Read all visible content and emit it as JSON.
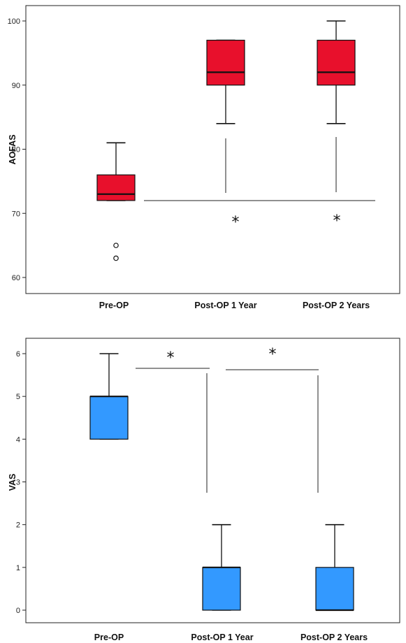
{
  "chart_data": [
    {
      "type": "boxplot",
      "ylabel": "AOFAS",
      "categories": [
        "Pre-OP",
        "Post-OP 1 Year",
        "Post-OP 2 Years"
      ],
      "ylim": [
        58,
        102
      ],
      "yticks": [
        60,
        70,
        80,
        90,
        100
      ],
      "box_color": "#e8102c",
      "boxes": [
        {
          "category": "Pre-OP",
          "whisker_low": 72,
          "q1": 72,
          "median": 73,
          "q3": 76,
          "whisker_high": 81,
          "outliers": [
            65,
            63
          ]
        },
        {
          "category": "Post-OP 1 Year",
          "whisker_low": 84,
          "q1": 90,
          "median": 92,
          "q3": 97,
          "whisker_high": 97,
          "outliers": []
        },
        {
          "category": "Post-OP 2 Years",
          "whisker_low": 84,
          "q1": 90,
          "median": 92,
          "q3": 97,
          "whisker_high": 100,
          "outliers": []
        }
      ],
      "significance": [
        {
          "marker": "*",
          "bracket": [
            "Pre-OP",
            "Post-OP 1 Year"
          ]
        },
        {
          "marker": "*",
          "bracket": [
            "Pre-OP",
            "Post-OP 2 Years"
          ]
        }
      ]
    },
    {
      "type": "boxplot",
      "ylabel": "VAS",
      "categories": [
        "Pre-OP",
        "Post-OP 1 Year",
        "Post-OP 2 Years"
      ],
      "ylim": [
        -0.2,
        6.3
      ],
      "yticks": [
        0,
        1,
        2,
        3,
        4,
        5,
        6
      ],
      "box_color": "#3399ff",
      "boxes": [
        {
          "category": "Pre-OP",
          "whisker_low": 4,
          "q1": 4,
          "median": 5,
          "q3": 5,
          "whisker_high": 6,
          "outliers": []
        },
        {
          "category": "Post-OP 1 Year",
          "whisker_low": 0,
          "q1": 0,
          "median": 1,
          "q3": 1,
          "whisker_high": 2,
          "outliers": []
        },
        {
          "category": "Post-OP 2 Years",
          "whisker_low": 0,
          "q1": 0,
          "median": 0,
          "q3": 1,
          "whisker_high": 2,
          "outliers": []
        }
      ],
      "significance": [
        {
          "marker": "*",
          "bracket": [
            "Pre-OP",
            "Post-OP 1 Year"
          ]
        },
        {
          "marker": "*",
          "bracket": [
            "Post-OP 1 Year",
            "Post-OP 2 Years"
          ]
        }
      ]
    }
  ]
}
